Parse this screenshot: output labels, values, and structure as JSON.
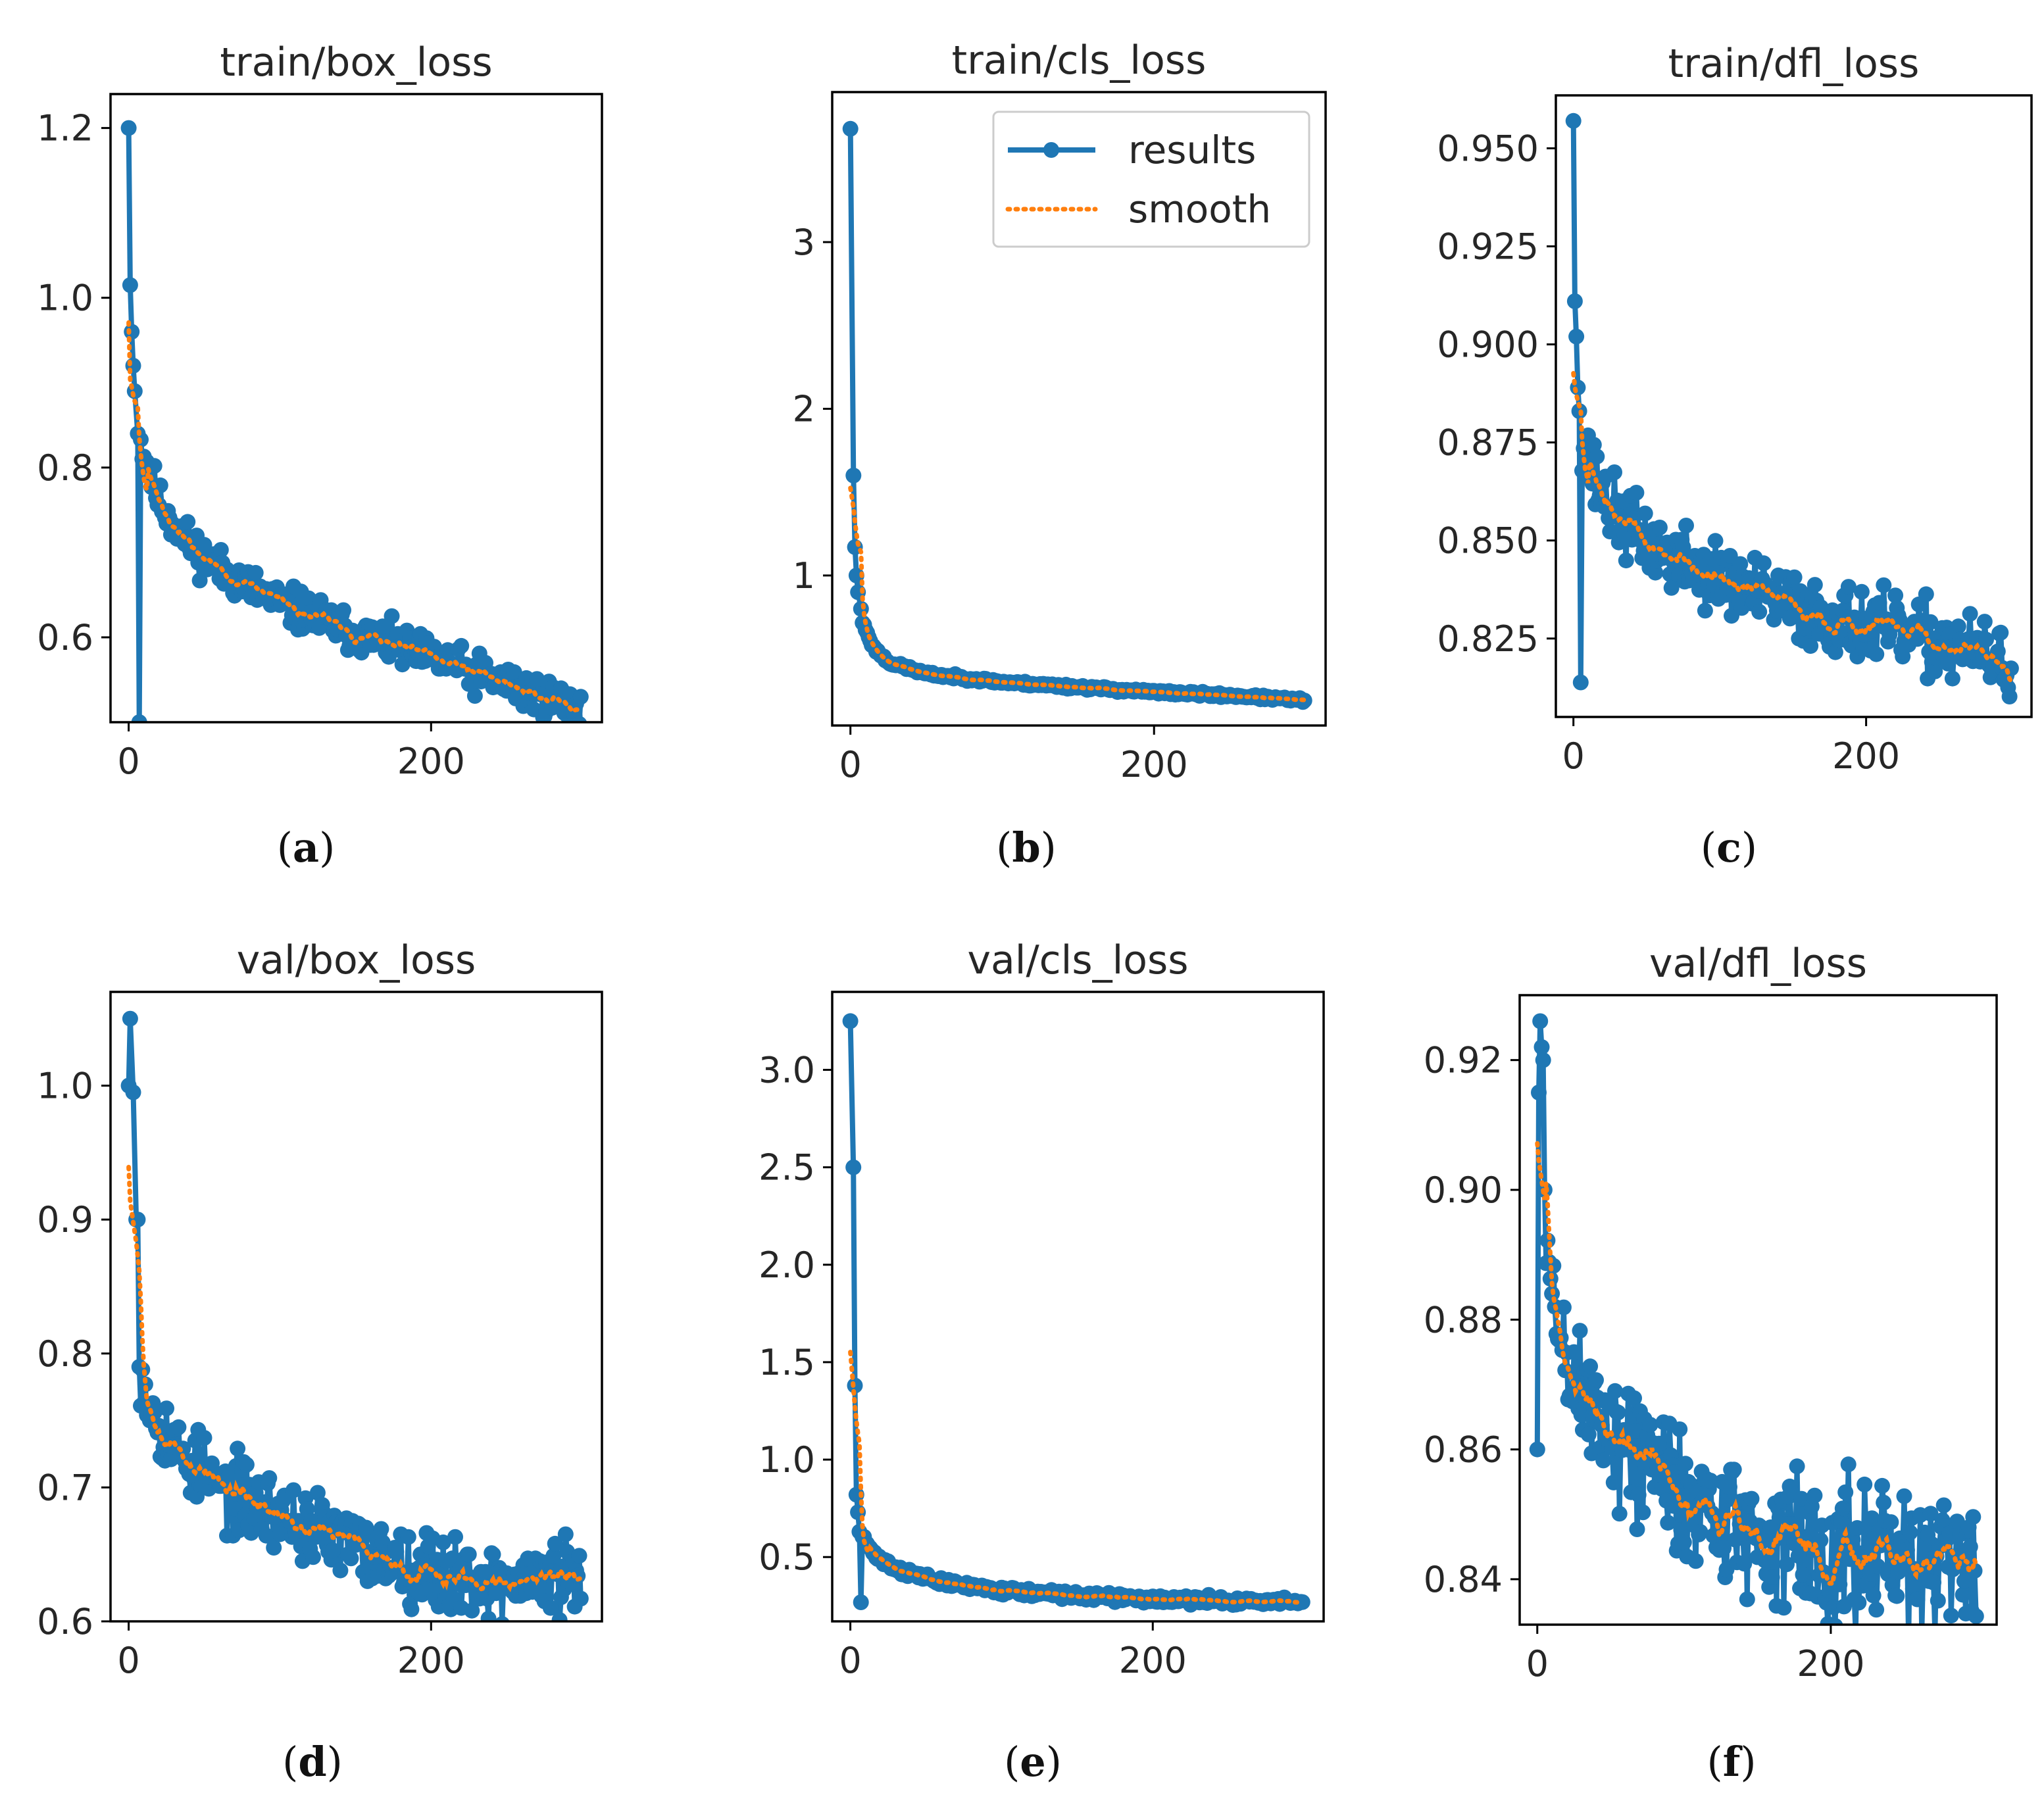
{
  "figure": {
    "captions": [
      "a",
      "b",
      "c",
      "d",
      "e",
      "f"
    ]
  },
  "colors": {
    "results": "#1f77b4",
    "smooth": "#ff7f0e"
  },
  "chart_data": [
    {
      "type": "line",
      "title": "train/box_loss",
      "caption": "a",
      "xlim": [
        -12,
        313
      ],
      "ylim": [
        0.5,
        1.24
      ],
      "xticks": [
        0,
        200
      ],
      "yticks": [
        0.6,
        0.8,
        1.0,
        1.2
      ],
      "ytick_labels": [
        "0.6",
        "0.8",
        "1.0",
        "1.2"
      ],
      "decimals": 3,
      "x_max": 299,
      "start": [
        1.2,
        1.015,
        0.96,
        0.92,
        0.89,
        0.84
      ],
      "start_x": [
        0,
        1,
        2,
        3,
        4,
        6
      ],
      "curve": [
        [
          8,
          0.83
        ],
        [
          20,
          0.76
        ],
        [
          40,
          0.71
        ],
        [
          60,
          0.68
        ],
        [
          100,
          0.64
        ],
        [
          150,
          0.605
        ],
        [
          200,
          0.575
        ],
        [
          250,
          0.545
        ],
        [
          300,
          0.515
        ]
      ],
      "noise": 0.012,
      "seed": 11,
      "legend": false,
      "series": [
        {
          "name": "results",
          "style": "line-marker"
        },
        {
          "name": "smooth",
          "style": "dotted"
        }
      ]
    },
    {
      "type": "line",
      "title": "train/cls_loss",
      "caption": "b",
      "xlim": [
        -12,
        313
      ],
      "ylim": [
        0.1,
        3.9
      ],
      "xticks": [
        0,
        200
      ],
      "yticks": [
        1,
        2,
        3
      ],
      "ytick_labels": [
        "1",
        "2",
        "3"
      ],
      "decimals": 3,
      "x_max": 299,
      "start": [
        3.68,
        1.6,
        1.17,
        1.0,
        0.9,
        0.8
      ],
      "start_x": [
        0,
        2,
        3,
        4,
        5,
        7
      ],
      "curve": [
        [
          8,
          0.72
        ],
        [
          15,
          0.57
        ],
        [
          25,
          0.48
        ],
        [
          50,
          0.41
        ],
        [
          100,
          0.36
        ],
        [
          150,
          0.33
        ],
        [
          200,
          0.3
        ],
        [
          250,
          0.28
        ],
        [
          300,
          0.25
        ]
      ],
      "noise": 0.006,
      "seed": 23,
      "legend": true,
      "legend_position": "top-right",
      "series": [
        {
          "name": "results",
          "style": "line-marker"
        },
        {
          "name": "smooth",
          "style": "dotted"
        }
      ]
    },
    {
      "type": "line",
      "title": "train/dfl_loss",
      "caption": "c",
      "xlim": [
        -12,
        313
      ],
      "ylim": [
        0.805,
        0.9635
      ],
      "xticks": [
        0,
        200
      ],
      "yticks": [
        0.825,
        0.85,
        0.875,
        0.9,
        0.925,
        0.95
      ],
      "ytick_labels": [
        "0.825",
        "0.850",
        "0.875",
        "0.900",
        "0.925",
        "0.950"
      ],
      "decimals": 4,
      "x_max": 299,
      "start": [
        0.957,
        0.911,
        0.902,
        0.889,
        0.883
      ],
      "start_x": [
        0,
        1,
        2,
        3,
        4
      ],
      "curve": [
        [
          6,
          0.878
        ],
        [
          15,
          0.865
        ],
        [
          30,
          0.856
        ],
        [
          60,
          0.847
        ],
        [
          100,
          0.84
        ],
        [
          150,
          0.833
        ],
        [
          200,
          0.828
        ],
        [
          250,
          0.824
        ],
        [
          300,
          0.818
        ]
      ],
      "noise": 0.0045,
      "seed": 37,
      "legend": false,
      "series": [
        {
          "name": "results",
          "style": "line-marker"
        },
        {
          "name": "smooth",
          "style": "dotted"
        }
      ]
    },
    {
      "type": "line",
      "title": "val/box_loss",
      "caption": "d",
      "xlim": [
        -12,
        313
      ],
      "ylim": [
        0.6,
        1.07
      ],
      "xticks": [
        0,
        200
      ],
      "yticks": [
        0.6,
        0.7,
        0.8,
        0.9,
        1.0
      ],
      "ytick_labels": [
        "0.6",
        "0.7",
        "0.8",
        "0.9",
        "1.0"
      ],
      "decimals": 3,
      "x_max": 299,
      "start": [
        1.0,
        1.05,
        0.995,
        0.9,
        0.9,
        0.79
      ],
      "start_x": [
        0,
        1,
        3,
        5,
        6,
        7
      ],
      "curve": [
        [
          8,
          0.79
        ],
        [
          15,
          0.76
        ],
        [
          30,
          0.73
        ],
        [
          60,
          0.7
        ],
        [
          100,
          0.68
        ],
        [
          150,
          0.655
        ],
        [
          200,
          0.638
        ],
        [
          250,
          0.628
        ],
        [
          300,
          0.635
        ]
      ],
      "noise": 0.014,
      "seed": 53,
      "legend": false,
      "series": [
        {
          "name": "results",
          "style": "line-marker"
        },
        {
          "name": "smooth",
          "style": "dotted"
        }
      ]
    },
    {
      "type": "line",
      "title": "val/cls_loss",
      "caption": "e",
      "xlim": [
        -12,
        313
      ],
      "ylim": [
        0.17,
        3.4
      ],
      "xticks": [
        0,
        200
      ],
      "yticks": [
        0.5,
        1.0,
        1.5,
        2.0,
        2.5,
        3.0
      ],
      "ytick_labels": [
        "0.5",
        "1.0",
        "1.5",
        "2.0",
        "2.5",
        "3.0"
      ],
      "decimals": 3,
      "x_max": 299,
      "start": [
        3.25,
        2.5,
        1.38,
        0.82,
        0.73,
        0.63
      ],
      "start_x": [
        0,
        2,
        3,
        4,
        5,
        6
      ],
      "curve": [
        [
          8,
          0.6
        ],
        [
          15,
          0.52
        ],
        [
          30,
          0.44
        ],
        [
          60,
          0.37
        ],
        [
          100,
          0.33
        ],
        [
          150,
          0.3
        ],
        [
          200,
          0.285
        ],
        [
          250,
          0.275
        ],
        [
          300,
          0.27
        ]
      ],
      "noise": 0.01,
      "seed": 71,
      "legend": false,
      "series": [
        {
          "name": "results",
          "style": "line-marker"
        },
        {
          "name": "smooth",
          "style": "dotted"
        }
      ]
    },
    {
      "type": "line",
      "title": "val/dfl_loss",
      "caption": "f",
      "xlim": [
        -12,
        313
      ],
      "ylim": [
        0.833,
        0.93
      ],
      "xticks": [
        0,
        200
      ],
      "yticks": [
        0.84,
        0.86,
        0.88,
        0.9,
        0.92
      ],
      "ytick_labels": [
        "0.84",
        "0.86",
        "0.88",
        "0.90",
        "0.92"
      ],
      "decimals": 4,
      "x_max": 299,
      "start": [
        0.86,
        0.915,
        0.926,
        0.922,
        0.92,
        0.9
      ],
      "start_x": [
        0,
        1,
        2,
        3,
        4,
        5
      ],
      "curve": [
        [
          6,
          0.89
        ],
        [
          15,
          0.877
        ],
        [
          30,
          0.868
        ],
        [
          60,
          0.861
        ],
        [
          100,
          0.853
        ],
        [
          150,
          0.847
        ],
        [
          200,
          0.844
        ],
        [
          250,
          0.842
        ],
        [
          300,
          0.843
        ]
      ],
      "noise": 0.0055,
      "seed": 89,
      "legend": false,
      "series": [
        {
          "name": "results",
          "style": "line-marker"
        },
        {
          "name": "smooth",
          "style": "dotted"
        }
      ]
    }
  ]
}
